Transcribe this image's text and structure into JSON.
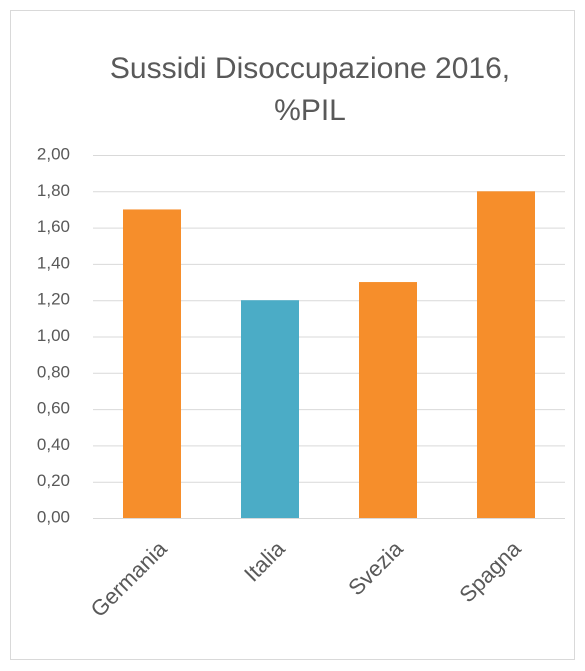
{
  "chart_data": {
    "type": "bar",
    "title": "Sussidi Disoccupazione 2016, %PIL",
    "categories": [
      "Germania",
      "Italia",
      "Svezia",
      "Spagna"
    ],
    "values": [
      1.7,
      1.2,
      1.3,
      1.8
    ],
    "colors": [
      "#f68e2b",
      "#4bacc6",
      "#f68e2b",
      "#f68e2b"
    ],
    "ylim": [
      0,
      2
    ],
    "yticks": [
      {
        "value": 0,
        "label": "0,00"
      },
      {
        "value": 0.2,
        "label": "0,20"
      },
      {
        "value": 0.4,
        "label": "0,40"
      },
      {
        "value": 0.6,
        "label": "0,60"
      },
      {
        "value": 0.8,
        "label": "0,80"
      },
      {
        "value": 1,
        "label": "1,00"
      },
      {
        "value": 1.2,
        "label": "1,20"
      },
      {
        "value": 1.4,
        "label": "1,40"
      },
      {
        "value": 1.6,
        "label": "1,60"
      },
      {
        "value": 1.8,
        "label": "1,80"
      },
      {
        "value": 2,
        "label": "2,00"
      }
    ],
    "grid": true
  }
}
